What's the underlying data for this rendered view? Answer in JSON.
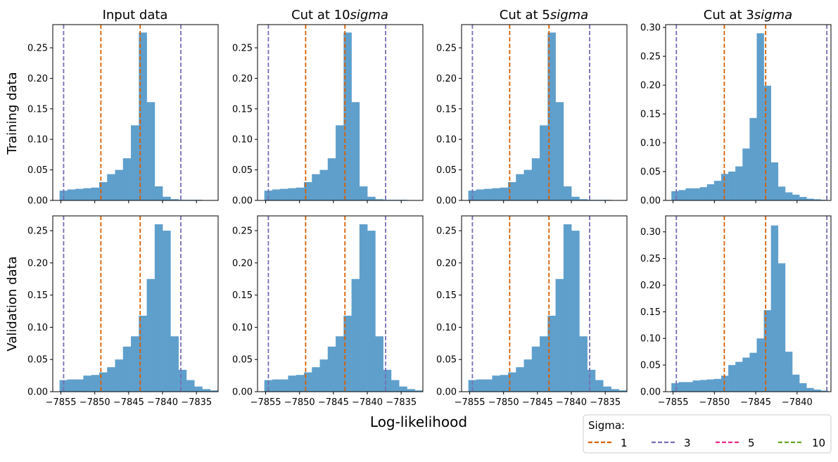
{
  "figure": {
    "xlabel": "Log-likelihood",
    "row_labels": [
      "Training data",
      "Validation data"
    ],
    "col_titles": [
      {
        "main": "Input data",
        "italic": ""
      },
      {
        "main": "Cut at 10",
        "italic": "sigma"
      },
      {
        "main": "Cut at 5",
        "italic": "sigma"
      },
      {
        "main": "Cut at 3",
        "italic": "sigma"
      }
    ]
  },
  "legend": {
    "title": "Sigma:",
    "placement": "bottom-right",
    "entries": [
      {
        "label": "1",
        "color": "#d95f02"
      },
      {
        "label": "3",
        "color": "#7570b3"
      },
      {
        "label": "5",
        "color": "#e7298a"
      },
      {
        "label": "10",
        "color": "#66a61e"
      }
    ]
  },
  "colors": {
    "bars": "#5f9fcc",
    "sigma1": "#d95f02",
    "sigma3": "#7570b3"
  },
  "chart_data": [
    {
      "type": "bar",
      "row": 0,
      "col": 0,
      "xlim": [
        -7856.2,
        -7831.8
      ],
      "ylim": [
        0,
        0.288
      ],
      "xticks": [
        -7855,
        -7850,
        -7845,
        -7840,
        -7835
      ],
      "xtick_labels_visible": false,
      "yticks": [
        0,
        0.05,
        0.1,
        0.15,
        0.2,
        0.25
      ],
      "bin_start": -7855.2,
      "bin_width": 1.17,
      "values": [
        0.016,
        0.018,
        0.019,
        0.02,
        0.021,
        0.03,
        0.043,
        0.05,
        0.069,
        0.123,
        0.275,
        0.161,
        0.023,
        0.006,
        0.002,
        0.001,
        0.001,
        0.001,
        0.0005
      ],
      "vlines": {
        "sigma1": [
          -7849.1,
          -7843.3
        ],
        "sigma3": [
          -7854.6,
          -7837.3
        ]
      }
    },
    {
      "type": "bar",
      "row": 0,
      "col": 1,
      "xlim": [
        -7856.2,
        -7831.8
      ],
      "ylim": [
        0,
        0.288
      ],
      "xticks": [
        -7855,
        -7850,
        -7845,
        -7840,
        -7835
      ],
      "xtick_labels_visible": false,
      "yticks": [
        0,
        0.05,
        0.1,
        0.15,
        0.2,
        0.25
      ],
      "bin_start": -7855.2,
      "bin_width": 1.17,
      "values": [
        0.016,
        0.018,
        0.019,
        0.02,
        0.021,
        0.03,
        0.043,
        0.05,
        0.069,
        0.123,
        0.275,
        0.161,
        0.023,
        0.006,
        0.002,
        0.001,
        0.001,
        0.001,
        0.0005
      ],
      "vlines": {
        "sigma1": [
          -7849.1,
          -7843.3
        ],
        "sigma3": [
          -7854.6,
          -7837.3
        ]
      }
    },
    {
      "type": "bar",
      "row": 0,
      "col": 2,
      "xlim": [
        -7856.2,
        -7831.8
      ],
      "ylim": [
        0,
        0.288
      ],
      "xticks": [
        -7855,
        -7850,
        -7845,
        -7840,
        -7835
      ],
      "xtick_labels_visible": false,
      "yticks": [
        0,
        0.05,
        0.1,
        0.15,
        0.2,
        0.25
      ],
      "bin_start": -7855.2,
      "bin_width": 1.17,
      "values": [
        0.016,
        0.018,
        0.019,
        0.02,
        0.021,
        0.03,
        0.043,
        0.05,
        0.069,
        0.123,
        0.275,
        0.161,
        0.023,
        0.006,
        0.002,
        0.001,
        0.001,
        0.001,
        0.0005
      ],
      "vlines": {
        "sigma1": [
          -7849.1,
          -7843.3
        ],
        "sigma3": [
          -7854.6,
          -7837.3
        ]
      }
    },
    {
      "type": "bar",
      "row": 0,
      "col": 3,
      "xlim": [
        -7855.9,
        -7835.9
      ],
      "ylim": [
        0,
        0.305
      ],
      "xticks": [
        -7855,
        -7850,
        -7845,
        -7840
      ],
      "xtick_labels_visible": false,
      "yticks": [
        0,
        0.05,
        0.1,
        0.15,
        0.2,
        0.25,
        0.3
      ],
      "bin_start": -7855.2,
      "bin_width": 0.86,
      "values": [
        0.016,
        0.018,
        0.021,
        0.021,
        0.023,
        0.028,
        0.034,
        0.046,
        0.05,
        0.059,
        0.09,
        0.143,
        0.29,
        0.199,
        0.066,
        0.024,
        0.014,
        0.01,
        0.006,
        0.003,
        0.002,
        0.001
      ],
      "vlines": {
        "sigma1": [
          -7848.8,
          -7843.8
        ],
        "sigma3": [
          -7854.6,
          -7836.4
        ]
      }
    },
    {
      "type": "bar",
      "row": 1,
      "col": 0,
      "xlim": [
        -7856.2,
        -7831.8
      ],
      "ylim": [
        0,
        0.273
      ],
      "xticks": [
        -7855,
        -7850,
        -7845,
        -7840,
        -7835
      ],
      "xtick_labels_visible": true,
      "yticks": [
        0,
        0.05,
        0.1,
        0.15,
        0.2,
        0.25
      ],
      "bin_start": -7855.2,
      "bin_width": 1.17,
      "values": [
        0.018,
        0.019,
        0.019,
        0.025,
        0.026,
        0.03,
        0.038,
        0.05,
        0.07,
        0.086,
        0.118,
        0.175,
        0.26,
        0.25,
        0.086,
        0.034,
        0.018,
        0.008,
        0.004,
        0.002
      ],
      "vlines": {
        "sigma1": [
          -7849.1,
          -7843.3
        ],
        "sigma3": [
          -7854.6,
          -7837.3
        ]
      }
    },
    {
      "type": "bar",
      "row": 1,
      "col": 1,
      "xlim": [
        -7856.2,
        -7831.8
      ],
      "ylim": [
        0,
        0.273
      ],
      "xticks": [
        -7855,
        -7850,
        -7845,
        -7840,
        -7835
      ],
      "xtick_labels_visible": true,
      "yticks": [
        0,
        0.05,
        0.1,
        0.15,
        0.2,
        0.25
      ],
      "bin_start": -7855.2,
      "bin_width": 1.17,
      "values": [
        0.018,
        0.019,
        0.019,
        0.025,
        0.026,
        0.03,
        0.038,
        0.05,
        0.07,
        0.086,
        0.118,
        0.175,
        0.26,
        0.25,
        0.086,
        0.034,
        0.018,
        0.008,
        0.004,
        0.002
      ],
      "vlines": {
        "sigma1": [
          -7849.1,
          -7843.3
        ],
        "sigma3": [
          -7854.6,
          -7837.3
        ]
      }
    },
    {
      "type": "bar",
      "row": 1,
      "col": 2,
      "xlim": [
        -7856.2,
        -7831.8
      ],
      "ylim": [
        0,
        0.273
      ],
      "xticks": [
        -7855,
        -7850,
        -7845,
        -7840,
        -7835
      ],
      "xtick_labels_visible": true,
      "yticks": [
        0,
        0.05,
        0.1,
        0.15,
        0.2,
        0.25
      ],
      "bin_start": -7855.2,
      "bin_width": 1.17,
      "values": [
        0.018,
        0.019,
        0.019,
        0.025,
        0.026,
        0.03,
        0.038,
        0.05,
        0.07,
        0.086,
        0.118,
        0.175,
        0.26,
        0.25,
        0.086,
        0.034,
        0.018,
        0.008,
        0.004,
        0.002
      ],
      "vlines": {
        "sigma1": [
          -7849.1,
          -7843.3
        ],
        "sigma3": [
          -7854.6,
          -7837.3
        ]
      }
    },
    {
      "type": "bar",
      "row": 1,
      "col": 3,
      "xlim": [
        -7855.9,
        -7835.9
      ],
      "ylim": [
        0,
        0.33
      ],
      "xticks": [
        -7855,
        -7850,
        -7845,
        -7840
      ],
      "xtick_labels_visible": true,
      "yticks": [
        0,
        0.05,
        0.1,
        0.15,
        0.2,
        0.25,
        0.3
      ],
      "bin_start": -7855.2,
      "bin_width": 0.86,
      "values": [
        0.016,
        0.018,
        0.018,
        0.021,
        0.022,
        0.023,
        0.024,
        0.03,
        0.05,
        0.056,
        0.064,
        0.073,
        0.1,
        0.153,
        0.312,
        0.241,
        0.075,
        0.032,
        0.016,
        0.007,
        0.004,
        0.002
      ],
      "vlines": {
        "sigma1": [
          -7848.8,
          -7843.8
        ],
        "sigma3": [
          -7854.6,
          -7836.4
        ]
      }
    }
  ]
}
